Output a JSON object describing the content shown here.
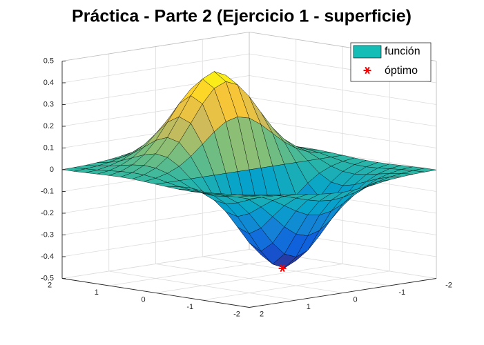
{
  "chart_data": {
    "type": "surface",
    "title": "Práctica - Parte 2 (Ejercicio 1 - superficie)",
    "x": [
      -2,
      -1.75,
      -1.5,
      -1.25,
      -1,
      -0.75,
      -0.5,
      -0.25,
      0,
      0.25,
      0.5,
      0.75,
      1,
      1.25,
      1.5,
      1.75,
      2
    ],
    "y": [
      -2,
      -1.75,
      -1.5,
      -1.25,
      -1,
      -0.75,
      -0.5,
      -0.25,
      0,
      0.25,
      0.5,
      0.75,
      1,
      1.25,
      1.5,
      1.75,
      2
    ],
    "z": [
      [
        -0.001,
        -0.001,
        -0.003,
        -0.005,
        -0.007,
        -0.008,
        -0.007,
        -0.004,
        0,
        0.004,
        0.007,
        0.008,
        0.007,
        0.005,
        0.003,
        0.001,
        0.001
      ],
      [
        -0.002,
        -0.004,
        -0.007,
        -0.012,
        -0.017,
        -0.02,
        -0.018,
        -0.011,
        0,
        0.011,
        0.018,
        0.02,
        0.017,
        0.012,
        0.007,
        0.004,
        0.002
      ],
      [
        -0.004,
        -0.009,
        -0.017,
        -0.028,
        -0.039,
        -0.045,
        -0.041,
        -0.025,
        0,
        0.025,
        0.041,
        0.045,
        0.039,
        0.028,
        0.017,
        0.009,
        0.004
      ],
      [
        -0.008,
        -0.017,
        -0.033,
        -0.055,
        -0.077,
        -0.09,
        -0.082,
        -0.049,
        0,
        0.049,
        0.082,
        0.09,
        0.077,
        0.055,
        0.033,
        0.017,
        0.008
      ],
      [
        -0.013,
        -0.03,
        -0.058,
        -0.096,
        -0.135,
        -0.157,
        -0.143,
        -0.086,
        0,
        0.086,
        0.143,
        0.157,
        0.135,
        0.096,
        0.058,
        0.03,
        0.013
      ],
      [
        -0.021,
        -0.047,
        -0.09,
        -0.149,
        -0.21,
        -0.244,
        -0.222,
        -0.134,
        0,
        0.134,
        0.222,
        0.244,
        0.21,
        0.149,
        0.09,
        0.047,
        0.021
      ],
      [
        -0.029,
        -0.064,
        -0.123,
        -0.204,
        -0.287,
        -0.333,
        -0.303,
        -0.183,
        0,
        0.183,
        0.303,
        0.333,
        0.287,
        0.204,
        0.123,
        0.064,
        0.029
      ],
      [
        -0.034,
        -0.077,
        -0.149,
        -0.246,
        -0.346,
        -0.401,
        -0.366,
        -0.221,
        0,
        0.221,
        0.366,
        0.401,
        0.346,
        0.246,
        0.149,
        0.077,
        0.034
      ],
      [
        -0.037,
        -0.082,
        -0.158,
        -0.262,
        -0.368,
        -0.427,
        -0.389,
        -0.235,
        0,
        0.235,
        0.389,
        0.427,
        0.368,
        0.262,
        0.158,
        0.082,
        0.037
      ],
      [
        -0.034,
        -0.077,
        -0.149,
        -0.246,
        -0.346,
        -0.401,
        -0.366,
        -0.221,
        0,
        0.221,
        0.366,
        0.401,
        0.346,
        0.246,
        0.149,
        0.077,
        0.034
      ],
      [
        -0.029,
        -0.064,
        -0.123,
        -0.204,
        -0.287,
        -0.333,
        -0.303,
        -0.183,
        0,
        0.183,
        0.303,
        0.333,
        0.287,
        0.204,
        0.123,
        0.064,
        0.029
      ],
      [
        -0.021,
        -0.047,
        -0.09,
        -0.149,
        -0.21,
        -0.244,
        -0.222,
        -0.134,
        0,
        0.134,
        0.222,
        0.244,
        0.21,
        0.149,
        0.09,
        0.047,
        0.021
      ],
      [
        -0.013,
        -0.03,
        -0.058,
        -0.096,
        -0.135,
        -0.157,
        -0.143,
        -0.086,
        0,
        0.086,
        0.143,
        0.157,
        0.135,
        0.096,
        0.058,
        0.03,
        0.013
      ],
      [
        -0.008,
        -0.017,
        -0.033,
        -0.055,
        -0.077,
        -0.09,
        -0.082,
        -0.049,
        0,
        0.049,
        0.082,
        0.09,
        0.077,
        0.055,
        0.033,
        0.017,
        0.008
      ],
      [
        -0.004,
        -0.009,
        -0.017,
        -0.028,
        -0.039,
        -0.045,
        -0.041,
        -0.025,
        0,
        0.025,
        0.041,
        0.045,
        0.039,
        0.028,
        0.017,
        0.009,
        0.004
      ],
      [
        -0.002,
        -0.004,
        -0.007,
        -0.012,
        -0.017,
        -0.02,
        -0.018,
        -0.011,
        0,
        0.011,
        0.018,
        0.02,
        0.017,
        0.012,
        0.007,
        0.004,
        0.002
      ],
      [
        -0.001,
        -0.001,
        -0.003,
        -0.005,
        -0.007,
        -0.008,
        -0.007,
        -0.004,
        0,
        0.004,
        0.007,
        0.008,
        0.007,
        0.005,
        0.003,
        0.001,
        0.001
      ]
    ],
    "xlim": [
      -2,
      2
    ],
    "ylim": [
      -2,
      2
    ],
    "zlim": [
      -0.5,
      0.5
    ],
    "xticks": [
      -2,
      -1,
      0,
      1,
      2
    ],
    "yticks": [
      -2,
      -1,
      0,
      1,
      2
    ],
    "zticks": [
      -0.5,
      -0.4,
      -0.3,
      -0.2,
      -0.1,
      0,
      0.1,
      0.2,
      0.3,
      0.4,
      0.5
    ],
    "grid": true,
    "colormap": [
      "#352a87",
      "#0f5cdd",
      "#1481d6",
      "#06a4ca",
      "#2eb7a4",
      "#87bf77",
      "#d1bb59",
      "#fec832",
      "#f9fb0e"
    ],
    "series": [
      {
        "name": "función",
        "color": "#14bdb5"
      },
      {
        "name": "óptimo",
        "color": "#ff0000",
        "x": -0.71,
        "y": 0,
        "z": -0.43
      }
    ]
  }
}
